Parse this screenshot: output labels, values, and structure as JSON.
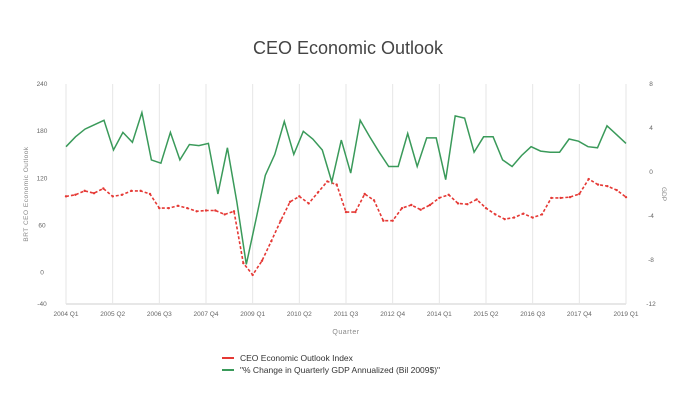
{
  "chart_data": {
    "type": "line",
    "title": "CEO Economic Outlook",
    "xlabel": "Quarter",
    "ylabel": "BRT CEO Economic Outlook",
    "y2label": "GDP",
    "ylim": [
      -40,
      240
    ],
    "y2lim": [
      -12,
      8
    ],
    "yticks": [
      240,
      180,
      120,
      60,
      0,
      -40
    ],
    "y2ticks": [
      8,
      4,
      0,
      -4,
      -8,
      -12
    ],
    "x_tick_labels": [
      "2004 Q1",
      "2005 Q2",
      "2006 Q3",
      "2007 Q4",
      "2009 Q1",
      "2010 Q2",
      "2011 Q3",
      "2012 Q4",
      "2014 Q1",
      "2015 Q2",
      "2016 Q3",
      "2017 Q4",
      "2019 Q1"
    ],
    "grid": "vertical",
    "legend_position": "bottom",
    "series": [
      {
        "name": "CEO Economic Outlook Index",
        "axis": "left",
        "color": "#e53935",
        "style": "dashed-dotted",
        "values": [
          97,
          99,
          104,
          101,
          107,
          97,
          99,
          104,
          104,
          100,
          82,
          82,
          85,
          82,
          78,
          79,
          79,
          74,
          78,
          12,
          -3,
          15,
          40,
          66,
          90,
          97,
          88,
          102,
          116,
          112,
          77,
          77,
          100,
          92,
          66,
          66,
          82,
          86,
          80,
          86,
          95,
          99,
          88,
          87,
          93,
          82,
          74,
          68,
          70,
          75,
          70,
          74,
          95,
          95,
          96,
          100,
          119,
          112,
          110,
          105,
          96
        ]
      },
      {
        "name": "\"% Change in Quarterly GDP Annualized (Bil 2009$)\"",
        "axis": "right",
        "color": "#3a9a5a",
        "style": "solid",
        "values": [
          2.3,
          3.2,
          3.9,
          4.3,
          4.7,
          2.0,
          3.6,
          2.7,
          5.4,
          1.1,
          0.8,
          3.6,
          1.1,
          2.5,
          2.4,
          2.6,
          -2.0,
          2.2,
          -2.7,
          -8.4,
          -4.4,
          -0.3,
          1.6,
          4.6,
          1.6,
          3.7,
          3.0,
          2.0,
          -0.9,
          2.9,
          -0.1,
          4.7,
          3.2,
          1.8,
          0.5,
          0.5,
          3.5,
          0.5,
          3.1,
          3.1,
          -0.7,
          5.1,
          4.9,
          1.8,
          3.2,
          3.2,
          1.1,
          0.5,
          1.5,
          2.3,
          1.9,
          1.8,
          1.8,
          3.0,
          2.8,
          2.3,
          2.2,
          4.2,
          3.4,
          2.6
        ]
      }
    ]
  }
}
